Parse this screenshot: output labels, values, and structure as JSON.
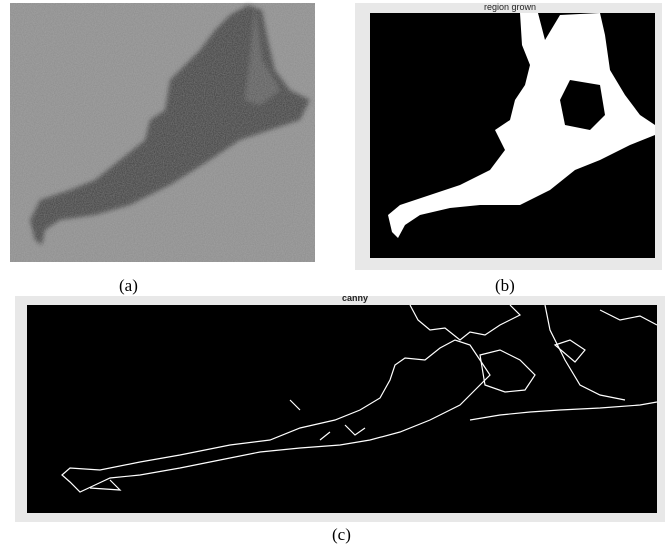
{
  "panels": [
    {
      "label": "(a)"
    },
    {
      "label": "(b)",
      "title": "region grown"
    },
    {
      "label": "(c)",
      "title": "canny"
    }
  ]
}
